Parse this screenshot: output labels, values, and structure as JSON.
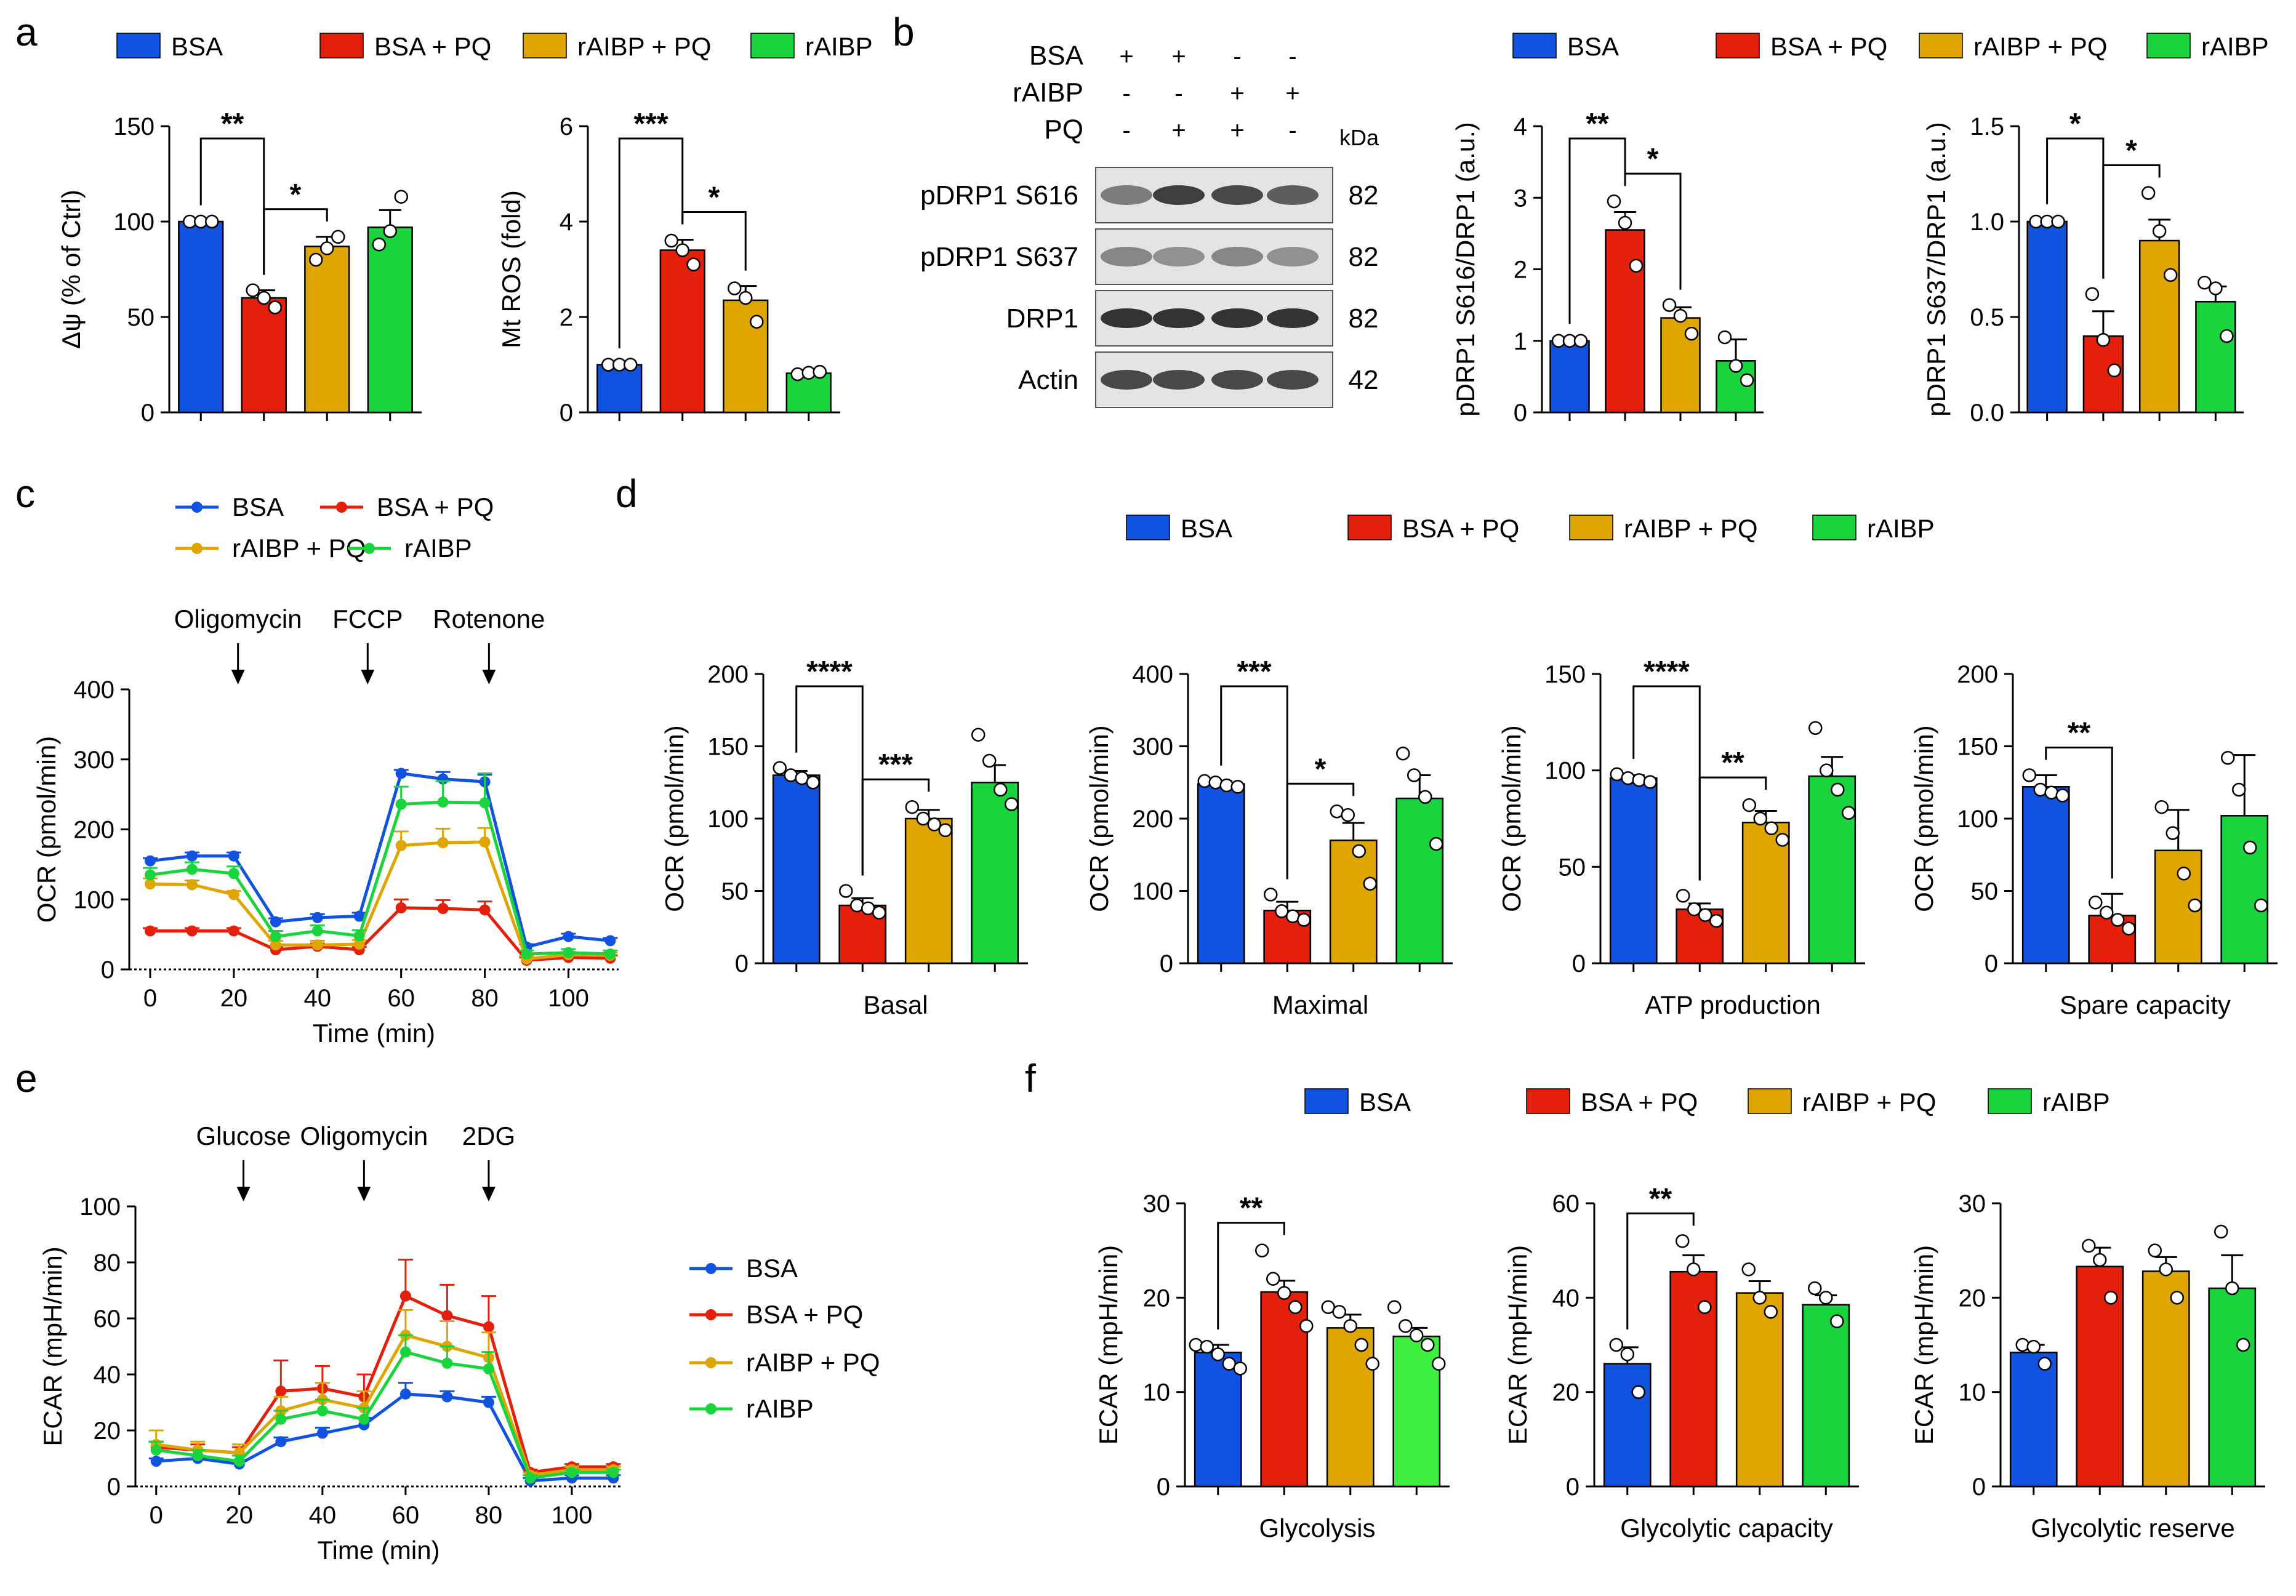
{
  "figure": {
    "panel_labels": [
      "a",
      "b",
      "c",
      "d",
      "e",
      "f"
    ],
    "colors": {
      "BSA": "#1152e0",
      "BSA + PQ": "#e41f0b",
      "rAIBP + PQ": "#dfa500",
      "rAIBP": "#19d43c",
      "rAIBP_light": "#40f040"
    },
    "legend_4": [
      "BSA",
      "BSA + PQ",
      "rAIBP + PQ",
      "rAIBP"
    ]
  },
  "blot": {
    "conditions": [
      {
        "label": "BSA",
        "marks": [
          "+",
          "+",
          "-",
          "-"
        ]
      },
      {
        "label": "rAIBP",
        "marks": [
          "-",
          "-",
          "+",
          "+"
        ]
      },
      {
        "label": "PQ",
        "marks": [
          "-",
          "+",
          "+",
          "-"
        ]
      }
    ],
    "kda_label": "kDa",
    "bands": [
      {
        "name": "pDRP1 S616",
        "kda": "82"
      },
      {
        "name": "pDRP1 S637",
        "kda": "82"
      },
      {
        "name": "DRP1",
        "kda": "82"
      },
      {
        "name": "Actin",
        "kda": "42"
      }
    ]
  },
  "chart_data": [
    {
      "id": "a1",
      "type": "bar",
      "ylabel": "Δψ (% of Ctrl)",
      "ylim": [
        0,
        150
      ],
      "yticks": [
        0,
        50,
        100,
        150
      ],
      "categories": [
        "BSA",
        "BSA + PQ",
        "rAIBP + PQ",
        "rAIBP"
      ],
      "xlabel": "",
      "values": [
        100,
        60,
        87,
        97
      ],
      "errors": [
        0.5,
        4,
        5,
        9
      ],
      "points": [
        [
          100,
          100,
          100
        ],
        [
          64,
          60,
          55
        ],
        [
          80,
          86,
          92
        ],
        [
          88,
          95,
          113
        ]
      ],
      "sig": [
        {
          "from": 0,
          "to": 1,
          "label": "**"
        },
        {
          "from": 1,
          "to": 2,
          "label": "*"
        }
      ]
    },
    {
      "id": "a2",
      "type": "bar",
      "ylabel": "Mt ROS (fold)",
      "ylim": [
        0,
        6
      ],
      "yticks": [
        0,
        2,
        4,
        6
      ],
      "categories": [
        "BSA",
        "BSA + PQ",
        "rAIBP + PQ",
        "rAIBP"
      ],
      "xlabel": "",
      "values": [
        1.0,
        3.4,
        2.35,
        0.82
      ],
      "errors": [
        0.02,
        0.22,
        0.3,
        0.04
      ],
      "points": [
        [
          1.0,
          1.0,
          1.0
        ],
        [
          3.6,
          3.4,
          3.1
        ],
        [
          2.6,
          2.4,
          1.9
        ],
        [
          0.8,
          0.83,
          0.85
        ]
      ],
      "sig": [
        {
          "from": 0,
          "to": 1,
          "label": "***"
        },
        {
          "from": 1,
          "to": 2,
          "label": "*"
        }
      ]
    },
    {
      "id": "b1",
      "type": "bar",
      "ylabel": "pDRP1 S616/DRP1 (a.u.)",
      "ylim": [
        0,
        4
      ],
      "yticks": [
        0,
        1,
        2,
        3,
        4
      ],
      "categories": [
        "BSA",
        "BSA + PQ",
        "rAIBP + PQ",
        "rAIBP"
      ],
      "xlabel": "",
      "values": [
        1.0,
        2.55,
        1.32,
        0.72
      ],
      "errors": [
        0.02,
        0.25,
        0.15,
        0.3
      ],
      "points": [
        [
          1.0,
          1.0,
          1.0
        ],
        [
          2.95,
          2.65,
          2.05
        ],
        [
          1.5,
          1.35,
          1.1
        ],
        [
          1.05,
          0.65,
          0.45
        ]
      ],
      "sig": [
        {
          "from": 0,
          "to": 1,
          "label": "**"
        },
        {
          "from": 1,
          "to": 2,
          "label": "*"
        }
      ]
    },
    {
      "id": "b2",
      "type": "bar",
      "ylabel": "pDRP1 S637/DRP1 (a.u.)",
      "ylim": [
        0,
        1.5
      ],
      "yticks": [
        0.0,
        0.5,
        1.0,
        1.5
      ],
      "categories": [
        "BSA",
        "BSA + PQ",
        "rAIBP + PQ",
        "rAIBP"
      ],
      "xlabel": "",
      "values": [
        1.0,
        0.4,
        0.9,
        0.58
      ],
      "errors": [
        0.01,
        0.13,
        0.11,
        0.08
      ],
      "points": [
        [
          1.0,
          1.0,
          1.0
        ],
        [
          0.62,
          0.38,
          0.22
        ],
        [
          1.15,
          0.95,
          0.72
        ],
        [
          0.68,
          0.65,
          0.4
        ]
      ],
      "sig": [
        {
          "from": 0,
          "to": 1,
          "label": "*"
        },
        {
          "from": 1,
          "to": 2,
          "label": "*"
        }
      ]
    },
    {
      "id": "c",
      "type": "line",
      "ylabel": "OCR (pmol/min)",
      "xlabel": "Time (min)",
      "ylim": [
        0,
        400
      ],
      "yticks": [
        0,
        100,
        200,
        300,
        400
      ],
      "xlim": [
        -5,
        112
      ],
      "xticks": [
        0,
        20,
        40,
        60,
        80,
        100
      ],
      "x": [
        0,
        10,
        20,
        30,
        40,
        50,
        60,
        70,
        80,
        90,
        100,
        110
      ],
      "injections": [
        {
          "label": "Oligomycin",
          "x": 21
        },
        {
          "label": "FCCP",
          "x": 52
        },
        {
          "label": "Rotenone",
          "x": 81
        }
      ],
      "series": [
        {
          "name": "BSA",
          "values": [
            155,
            162,
            162,
            68,
            74,
            76,
            280,
            272,
            268,
            32,
            47,
            41
          ],
          "errors": [
            4,
            5,
            5,
            5,
            5,
            5,
            5,
            10,
            10,
            4,
            4,
            4
          ]
        },
        {
          "name": "BSA + PQ",
          "values": [
            55,
            55,
            55,
            28,
            33,
            28,
            88,
            87,
            85,
            13,
            17,
            16
          ],
          "errors": [
            4,
            4,
            4,
            4,
            4,
            4,
            12,
            12,
            12,
            4,
            4,
            4
          ]
        },
        {
          "name": "rAIBP + PQ",
          "values": [
            122,
            121,
            107,
            35,
            35,
            36,
            177,
            181,
            182,
            15,
            21,
            20
          ],
          "errors": [
            8,
            6,
            5,
            6,
            6,
            6,
            20,
            20,
            20,
            4,
            4,
            4
          ]
        },
        {
          "name": "rAIBP",
          "values": [
            135,
            143,
            137,
            47,
            55,
            48,
            236,
            239,
            238,
            22,
            24,
            22
          ],
          "errors": [
            10,
            10,
            10,
            8,
            8,
            8,
            25,
            30,
            42,
            5,
            5,
            5
          ]
        }
      ]
    },
    {
      "id": "d1",
      "type": "bar",
      "ylabel": "OCR (pmol/min)",
      "xlabel": "Basal",
      "ylim": [
        0,
        200
      ],
      "yticks": [
        0,
        50,
        100,
        150,
        200
      ],
      "categories": [
        "BSA",
        "BSA + PQ",
        "rAIBP + PQ",
        "rAIBP"
      ],
      "values": [
        130,
        40,
        100,
        125
      ],
      "errors": [
        3,
        5,
        6,
        12
      ],
      "points": [
        [
          135,
          130,
          128,
          125
        ],
        [
          50,
          40,
          38,
          35
        ],
        [
          108,
          100,
          96,
          92
        ],
        [
          158,
          140,
          120,
          110
        ]
      ],
      "sig": [
        {
          "from": 0,
          "to": 1,
          "label": "****"
        },
        {
          "from": 1,
          "to": 2,
          "label": "***"
        }
      ]
    },
    {
      "id": "d2",
      "type": "bar",
      "ylabel": "OCR (pmol/min)",
      "xlabel": "Maximal",
      "ylim": [
        0,
        400
      ],
      "yticks": [
        0,
        100,
        200,
        300,
        400
      ],
      "categories": [
        "BSA",
        "BSA + PQ",
        "rAIBP + PQ",
        "rAIBP"
      ],
      "values": [
        248,
        73,
        170,
        228
      ],
      "errors": [
        4,
        12,
        24,
        32
      ],
      "points": [
        [
          252,
          250,
          246,
          244
        ],
        [
          95,
          72,
          65,
          60
        ],
        [
          210,
          205,
          155,
          110
        ],
        [
          290,
          260,
          230,
          165
        ]
      ],
      "sig": [
        {
          "from": 0,
          "to": 1,
          "label": "***"
        },
        {
          "from": 1,
          "to": 2,
          "label": "*"
        }
      ]
    },
    {
      "id": "d3",
      "type": "bar",
      "ylabel": "OCR (pmol/min)",
      "xlabel": "ATP production",
      "ylim": [
        0,
        150
      ],
      "yticks": [
        0,
        50,
        100,
        150
      ],
      "categories": [
        "BSA",
        "BSA + PQ",
        "rAIBP + PQ",
        "rAIBP"
      ],
      "values": [
        96,
        28,
        73,
        97
      ],
      "errors": [
        1.5,
        3,
        6,
        10
      ],
      "points": [
        [
          98,
          96,
          95,
          94
        ],
        [
          35,
          28,
          25,
          22
        ],
        [
          82,
          75,
          70,
          64
        ],
        [
          122,
          100,
          90,
          78
        ]
      ],
      "sig": [
        {
          "from": 0,
          "to": 1,
          "label": "****"
        },
        {
          "from": 1,
          "to": 2,
          "label": "**"
        }
      ]
    },
    {
      "id": "d4",
      "type": "bar",
      "ylabel": "OCR (pmol/min)",
      "xlabel": "Spare capacity",
      "ylim": [
        0,
        200
      ],
      "yticks": [
        0,
        50,
        100,
        150,
        200
      ],
      "categories": [
        "BSA",
        "BSA + PQ",
        "rAIBP + PQ",
        "rAIBP"
      ],
      "values": [
        122,
        33,
        78,
        102
      ],
      "errors": [
        8,
        15,
        28,
        42
      ],
      "points": [
        [
          130,
          120,
          118,
          116
        ],
        [
          42,
          35,
          30,
          24
        ],
        [
          108,
          90,
          62,
          40
        ],
        [
          142,
          120,
          80,
          40
        ]
      ],
      "sig": [
        {
          "from": 0,
          "to": 1,
          "label": "**"
        }
      ]
    },
    {
      "id": "e",
      "type": "line",
      "ylabel": "ECAR (mpH/min)",
      "xlabel": "Time (min)",
      "ylim": [
        0,
        100
      ],
      "yticks": [
        0,
        20,
        40,
        60,
        80,
        100
      ],
      "xlim": [
        -5,
        112
      ],
      "xticks": [
        0,
        20,
        40,
        60,
        80,
        100
      ],
      "x": [
        0,
        10,
        20,
        30,
        40,
        50,
        60,
        70,
        80,
        90,
        100,
        110
      ],
      "injections": [
        {
          "label": "Glucose",
          "x": 21
        },
        {
          "label": "Oligomycin",
          "x": 50
        },
        {
          "label": "2DG",
          "x": 80
        }
      ],
      "series": [
        {
          "name": "BSA",
          "values": [
            9,
            10,
            8,
            16,
            19,
            22,
            33,
            32,
            30,
            2,
            3,
            3
          ],
          "errors": [
            1,
            1,
            1,
            1.5,
            2,
            2.5,
            4,
            2,
            2,
            1,
            1,
            1
          ]
        },
        {
          "name": "BSA + PQ",
          "values": [
            14,
            13,
            12,
            34,
            35,
            32,
            68,
            61,
            57,
            5,
            7,
            7
          ],
          "errors": [
            2,
            2,
            2,
            11,
            8,
            8,
            13,
            11,
            11,
            1,
            1,
            1
          ]
        },
        {
          "name": "rAIBP + PQ",
          "values": [
            15,
            13,
            12,
            27,
            31,
            28,
            54,
            50,
            46,
            4,
            6,
            6
          ],
          "errors": [
            5,
            3,
            3,
            5,
            6,
            6,
            9,
            9,
            9,
            1,
            1,
            1
          ]
        },
        {
          "name": "rAIBP",
          "values": [
            13,
            11,
            9,
            24,
            27,
            24,
            48,
            44,
            42,
            3,
            5,
            5
          ],
          "errors": [
            3,
            2,
            2,
            3,
            4,
            4,
            6,
            6,
            6,
            1,
            1,
            1
          ]
        }
      ]
    },
    {
      "id": "f1",
      "type": "bar",
      "ylabel": "ECAR (mpH/min)",
      "xlabel": "Glycolysis",
      "ylim": [
        0,
        30
      ],
      "yticks": [
        0,
        10,
        20,
        30
      ],
      "categories": [
        "BSA",
        "BSA + PQ",
        "rAIBP + PQ",
        "rAIBP"
      ],
      "values": [
        14.2,
        20.6,
        16.8,
        15.9
      ],
      "errors": [
        0.8,
        1.2,
        1.4,
        0.9
      ],
      "points": [
        [
          15,
          14.8,
          14,
          13,
          12.5
        ],
        [
          25,
          22,
          20.5,
          19,
          17
        ],
        [
          19,
          18.5,
          17,
          15,
          13
        ],
        [
          19,
          17,
          16,
          15,
          13
        ]
      ],
      "sig": [
        {
          "from": 0,
          "to": 1,
          "label": "**"
        }
      ]
    },
    {
      "id": "f2",
      "type": "bar",
      "ylabel": "ECAR (mpH/min)",
      "xlabel": "Glycolytic capacity",
      "ylim": [
        0,
        60
      ],
      "yticks": [
        0,
        20,
        40,
        60
      ],
      "categories": [
        "BSA",
        "BSA + PQ",
        "rAIBP + PQ",
        "rAIBP"
      ],
      "values": [
        26,
        45.5,
        41,
        38.5
      ],
      "errors": [
        3.5,
        3.5,
        2.5,
        2
      ],
      "points": [
        [
          30,
          28,
          20
        ],
        [
          52,
          46,
          38
        ],
        [
          46,
          40,
          37
        ],
        [
          42,
          40,
          35
        ]
      ],
      "sig": [
        {
          "from": 0,
          "to": 1,
          "label": "**"
        }
      ]
    },
    {
      "id": "f3",
      "type": "bar",
      "ylabel": "ECAR (mpH/min)",
      "xlabel": "Glycolytic reserve",
      "ylim": [
        0,
        30
      ],
      "yticks": [
        0,
        10,
        20,
        30
      ],
      "categories": [
        "BSA",
        "BSA + PQ",
        "rAIBP + PQ",
        "rAIBP"
      ],
      "values": [
        14.2,
        23.3,
        22.8,
        21
      ],
      "errors": [
        0.8,
        2,
        1.5,
        3.5
      ],
      "points": [
        [
          15,
          14.8,
          13
        ],
        [
          25.5,
          24,
          20
        ],
        [
          25,
          23,
          20
        ],
        [
          27,
          21,
          15
        ]
      ],
      "sig": []
    }
  ]
}
